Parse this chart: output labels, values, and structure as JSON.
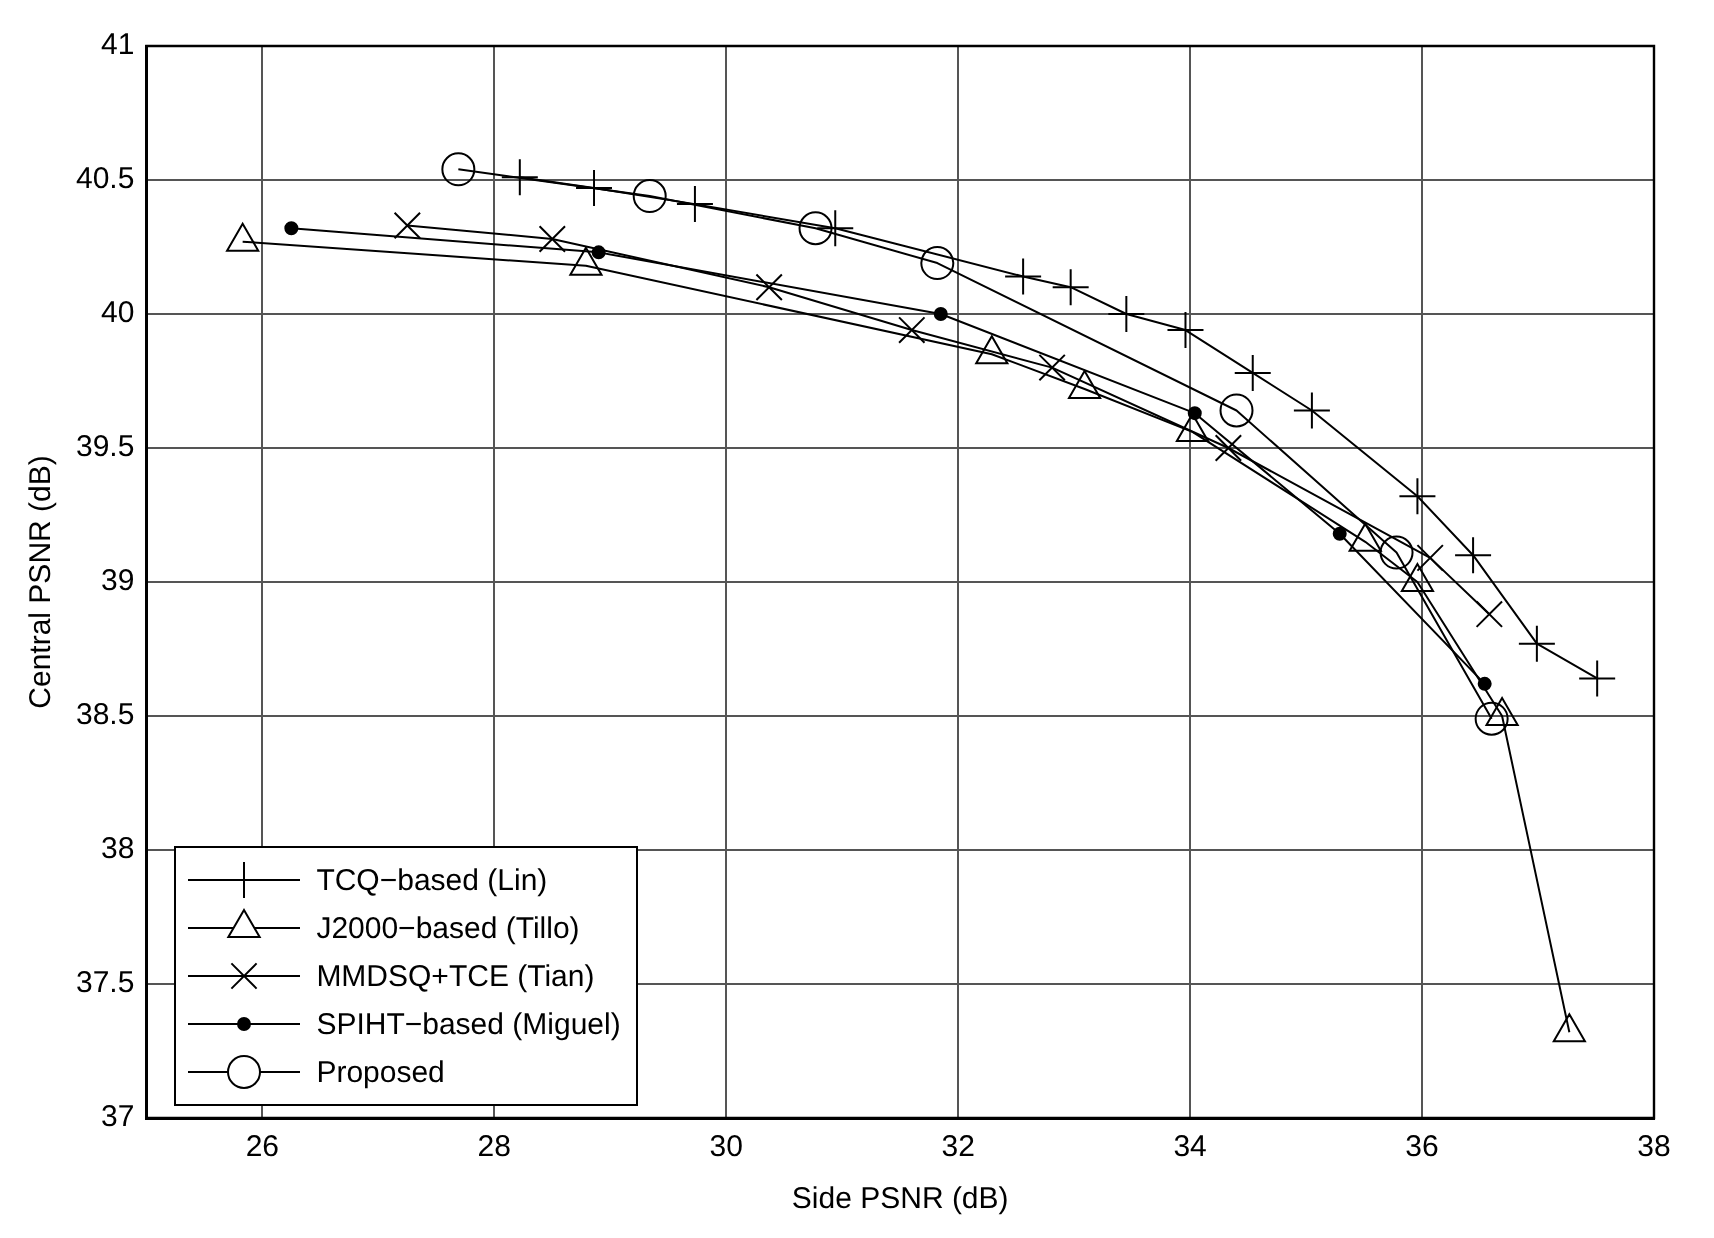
{
  "chart_data": {
    "type": "line",
    "xlabel": "Side PSNR (dB)",
    "ylabel": "Central PSNR (dB)",
    "xlim": [
      25,
      38
    ],
    "xticks": [
      26,
      28,
      30,
      32,
      34,
      36,
      38
    ],
    "ylim": [
      37,
      41
    ],
    "yticks": [
      37,
      37.5,
      38,
      38.5,
      39,
      39.5,
      40,
      40.5,
      41
    ],
    "grid": true,
    "legend": "bottom left",
    "line_style": "solid",
    "series": [
      {
        "name": "TCQ−based (Lin)",
        "color": "#000000",
        "marker": "plus",
        "x": [
          28.22,
          28.86,
          29.73,
          30.94,
          32.56,
          32.97,
          33.45,
          33.96,
          34.54,
          35.05,
          35.96,
          36.44,
          36.99,
          37.51
        ],
        "values": [
          40.51,
          40.47,
          40.41,
          40.32,
          40.14,
          40.1,
          40.0,
          39.94,
          39.78,
          39.64,
          39.32,
          39.1,
          38.77,
          38.64
        ]
      },
      {
        "name": "J2000−based (Tillo)",
        "color": "#000000",
        "marker": "triangle",
        "x": [
          25.83,
          28.79,
          32.29,
          33.09,
          34.02,
          35.51,
          35.96,
          36.69,
          37.27
        ],
        "values": [
          40.27,
          40.18,
          39.85,
          39.72,
          39.56,
          39.15,
          39.0,
          38.5,
          37.32
        ]
      },
      {
        "name": "MMDSQ+TCE (Tian)",
        "color": "#000000",
        "marker": "cross",
        "x": [
          27.25,
          28.5,
          30.37,
          31.6,
          32.81,
          34.33,
          36.07,
          36.58
        ],
        "values": [
          40.33,
          40.28,
          40.1,
          39.94,
          39.8,
          39.5,
          39.09,
          38.88
        ]
      },
      {
        "name": "SPIHT−based (Miguel)",
        "color": "#000000",
        "marker": "point",
        "x": [
          26.25,
          28.9,
          31.85,
          34.04,
          35.29,
          36.54
        ],
        "values": [
          40.32,
          40.23,
          40.0,
          39.63,
          39.18,
          38.62
        ]
      },
      {
        "name": "Proposed",
        "color": "#000000",
        "marker": "circle",
        "x": [
          27.69,
          29.34,
          30.77,
          31.82,
          34.4,
          35.78,
          36.6
        ],
        "values": [
          40.54,
          40.44,
          40.32,
          40.19,
          39.64,
          39.11,
          38.49
        ]
      }
    ]
  }
}
